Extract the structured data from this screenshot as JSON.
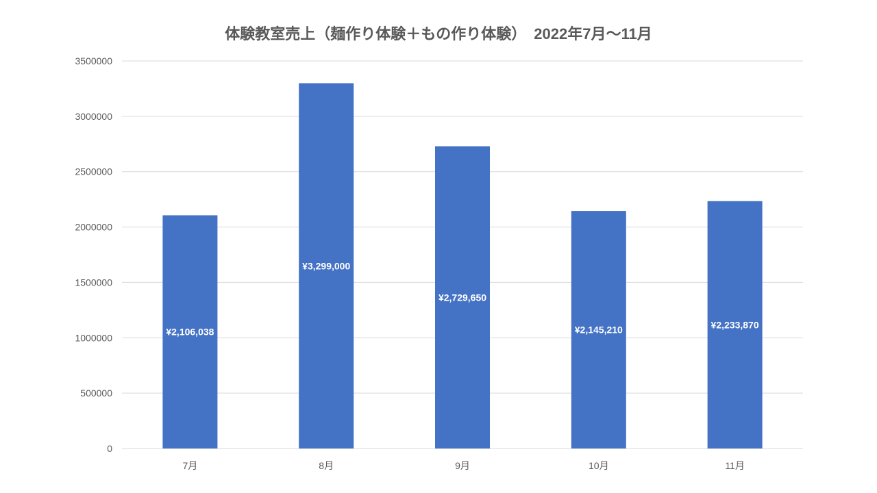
{
  "chart_data": {
    "type": "bar",
    "title": "体験教室売上（麺作り体験＋もの作り体験）　2022年7月～11月",
    "categories": [
      "7月",
      "8月",
      "9月",
      "10月",
      "11月"
    ],
    "values": [
      2106038,
      3299000,
      2729650,
      2145210,
      2233870
    ],
    "data_labels": [
      "¥2,106,038",
      "¥3,299,000",
      "¥2,729,650",
      "¥2,145,210",
      "¥2,233,870"
    ],
    "yticks": [
      "0",
      "500000",
      "1000000",
      "1500000",
      "2000000",
      "2500000",
      "3000000",
      "3500000"
    ],
    "ylim": [
      0,
      3500000
    ],
    "xlabel": "",
    "ylabel": "",
    "grid": true,
    "legend": "none",
    "colors": {
      "bar": "#4472C4",
      "grid": "#D9D9D9",
      "tick_text": "#595959",
      "title": "#595959",
      "data_label": "#FFFFFF"
    }
  }
}
